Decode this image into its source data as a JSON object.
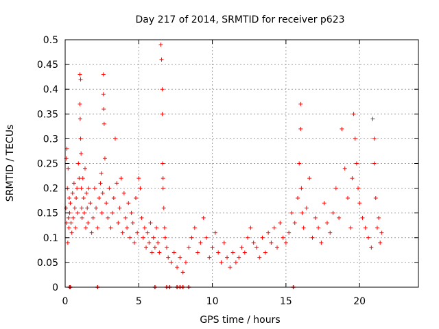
{
  "chart_data": {
    "type": "scatter",
    "title": "Day 217 of 2014, SRMTID for receiver p623",
    "xlabel": "GPS time / hours",
    "ylabel": "SRMTID / TECUs",
    "xlim": [
      0,
      24
    ],
    "ylim": [
      0,
      0.5
    ],
    "x_ticks": [
      0,
      5,
      10,
      15,
      20
    ],
    "y_ticks": [
      0,
      0.05,
      0.1,
      0.15,
      0.2,
      0.25,
      0.3,
      0.35,
      0.4,
      0.45,
      0.5
    ],
    "x_tick_labels": [
      "0",
      "5",
      "10",
      "15",
      "20"
    ],
    "y_tick_labels": [
      "0",
      "0.05",
      "0.1",
      "0.15",
      "0.2",
      "0.25",
      "0.3",
      "0.35",
      "0.4",
      "0.45",
      "0.5"
    ],
    "grid": true,
    "marker": "+",
    "series": [
      {
        "name": "SRMTID",
        "color": "#ff0000",
        "x": [
          0.05,
          0.08,
          0.1,
          0.12,
          0.15,
          0.18,
          0.2,
          0.22,
          0.25,
          0.28,
          0.3,
          0.35,
          0.4,
          0.45,
          0.5,
          0.55,
          0.6,
          0.65,
          0.7,
          0.75,
          0.8,
          0.85,
          0.9,
          0.95,
          1.0,
          1.0,
          1.02,
          1.05,
          1.05,
          1.08,
          1.1,
          1.12,
          1.15,
          1.2,
          1.25,
          1.3,
          1.35,
          1.4,
          1.45,
          1.5,
          1.55,
          1.6,
          1.7,
          1.8,
          1.9,
          2.0,
          2.1,
          2.2,
          2.3,
          2.4,
          2.45,
          2.5,
          2.55,
          2.6,
          2.6,
          2.62,
          2.65,
          2.7,
          2.8,
          2.9,
          3.0,
          3.1,
          3.2,
          3.3,
          3.4,
          3.5,
          3.6,
          3.7,
          3.8,
          3.9,
          4.0,
          4.1,
          4.2,
          4.3,
          4.4,
          4.5,
          4.6,
          4.7,
          4.8,
          4.9,
          5.0,
          5.1,
          5.2,
          5.3,
          5.4,
          5.5,
          5.6,
          5.7,
          5.8,
          5.9,
          6.0,
          6.1,
          6.2,
          6.3,
          6.4,
          6.5,
          6.55,
          6.6,
          6.6,
          6.62,
          6.65,
          6.65,
          6.7,
          6.75,
          6.8,
          6.9,
          7.0,
          7.2,
          7.4,
          7.6,
          7.8,
          8.0,
          8.2,
          8.4,
          8.6,
          8.8,
          9.0,
          9.2,
          9.4,
          9.6,
          9.8,
          10.0,
          10.2,
          10.4,
          10.6,
          10.8,
          11.0,
          11.2,
          11.4,
          11.6,
          11.8,
          12.0,
          12.2,
          12.4,
          12.6,
          12.8,
          13.0,
          13.2,
          13.4,
          13.6,
          13.8,
          14.0,
          14.2,
          14.4,
          14.6,
          14.8,
          15.0,
          15.2,
          15.4,
          15.6,
          15.8,
          15.9,
          16.0,
          16.0,
          16.05,
          16.1,
          16.2,
          16.4,
          16.6,
          16.8,
          17.0,
          17.2,
          17.4,
          17.6,
          17.8,
          18.0,
          18.2,
          18.4,
          18.6,
          18.8,
          19.0,
          19.2,
          19.4,
          19.5,
          19.6,
          19.7,
          19.8,
          19.9,
          20.0,
          20.2,
          20.4,
          20.6,
          20.8,
          20.9,
          21.0,
          21.0,
          21.1,
          21.2,
          21.3,
          21.4,
          21.5
        ],
        "y": [
          0.16,
          0.26,
          0.13,
          0.28,
          0.2,
          0.09,
          0.24,
          0.14,
          0.12,
          0.18,
          0.15,
          0.17,
          0.13,
          0.11,
          0.19,
          0.14,
          0.21,
          0.16,
          0.12,
          0.18,
          0.2,
          0.15,
          0.25,
          0.22,
          0.43,
          0.37,
          0.34,
          0.42,
          0.3,
          0.27,
          0.2,
          0.16,
          0.14,
          0.22,
          0.18,
          0.15,
          0.24,
          0.12,
          0.19,
          0.16,
          0.13,
          0.2,
          0.17,
          0.11,
          0.14,
          0.2,
          0.16,
          0.12,
          0.18,
          0.21,
          0.23,
          0.15,
          0.19,
          0.43,
          0.39,
          0.36,
          0.33,
          0.26,
          0.17,
          0.14,
          0.2,
          0.12,
          0.15,
          0.18,
          0.3,
          0.21,
          0.13,
          0.16,
          0.22,
          0.11,
          0.19,
          0.14,
          0.12,
          0.17,
          0.1,
          0.15,
          0.13,
          0.09,
          0.18,
          0.11,
          0.22,
          0.2,
          0.14,
          0.1,
          0.12,
          0.08,
          0.11,
          0.09,
          0.13,
          0.07,
          0.1,
          0.08,
          0.12,
          0.09,
          0.07,
          0.49,
          0.46,
          0.4,
          0.35,
          0.25,
          0.22,
          0.2,
          0.16,
          0.12,
          0.1,
          0.08,
          0.06,
          0.05,
          0.07,
          0.04,
          0.06,
          0.03,
          0.05,
          0.08,
          0.1,
          0.12,
          0.07,
          0.09,
          0.14,
          0.1,
          0.06,
          0.08,
          0.11,
          0.07,
          0.05,
          0.09,
          0.06,
          0.04,
          0.07,
          0.05,
          0.06,
          0.08,
          0.07,
          0.1,
          0.12,
          0.09,
          0.08,
          0.06,
          0.1,
          0.07,
          0.11,
          0.09,
          0.12,
          0.08,
          0.13,
          0.1,
          0.09,
          0.11,
          0.15,
          0.13,
          0.18,
          0.25,
          0.37,
          0.32,
          0.2,
          0.15,
          0.12,
          0.16,
          0.22,
          0.1,
          0.14,
          0.12,
          0.09,
          0.17,
          0.13,
          0.11,
          0.15,
          0.2,
          0.14,
          0.32,
          0.24,
          0.18,
          0.12,
          0.22,
          0.35,
          0.3,
          0.25,
          0.2,
          0.17,
          0.14,
          0.12,
          0.1,
          0.08,
          0.34,
          0.3,
          0.25,
          0.18,
          0.12,
          0.14,
          0.09,
          0.11
        ],
        "baseline_markers_x": [
          0.3,
          0.35,
          2.2,
          6.1,
          6.9,
          7.1,
          7.6,
          7.8,
          8.0,
          8.4,
          15.5
        ]
      }
    ]
  }
}
